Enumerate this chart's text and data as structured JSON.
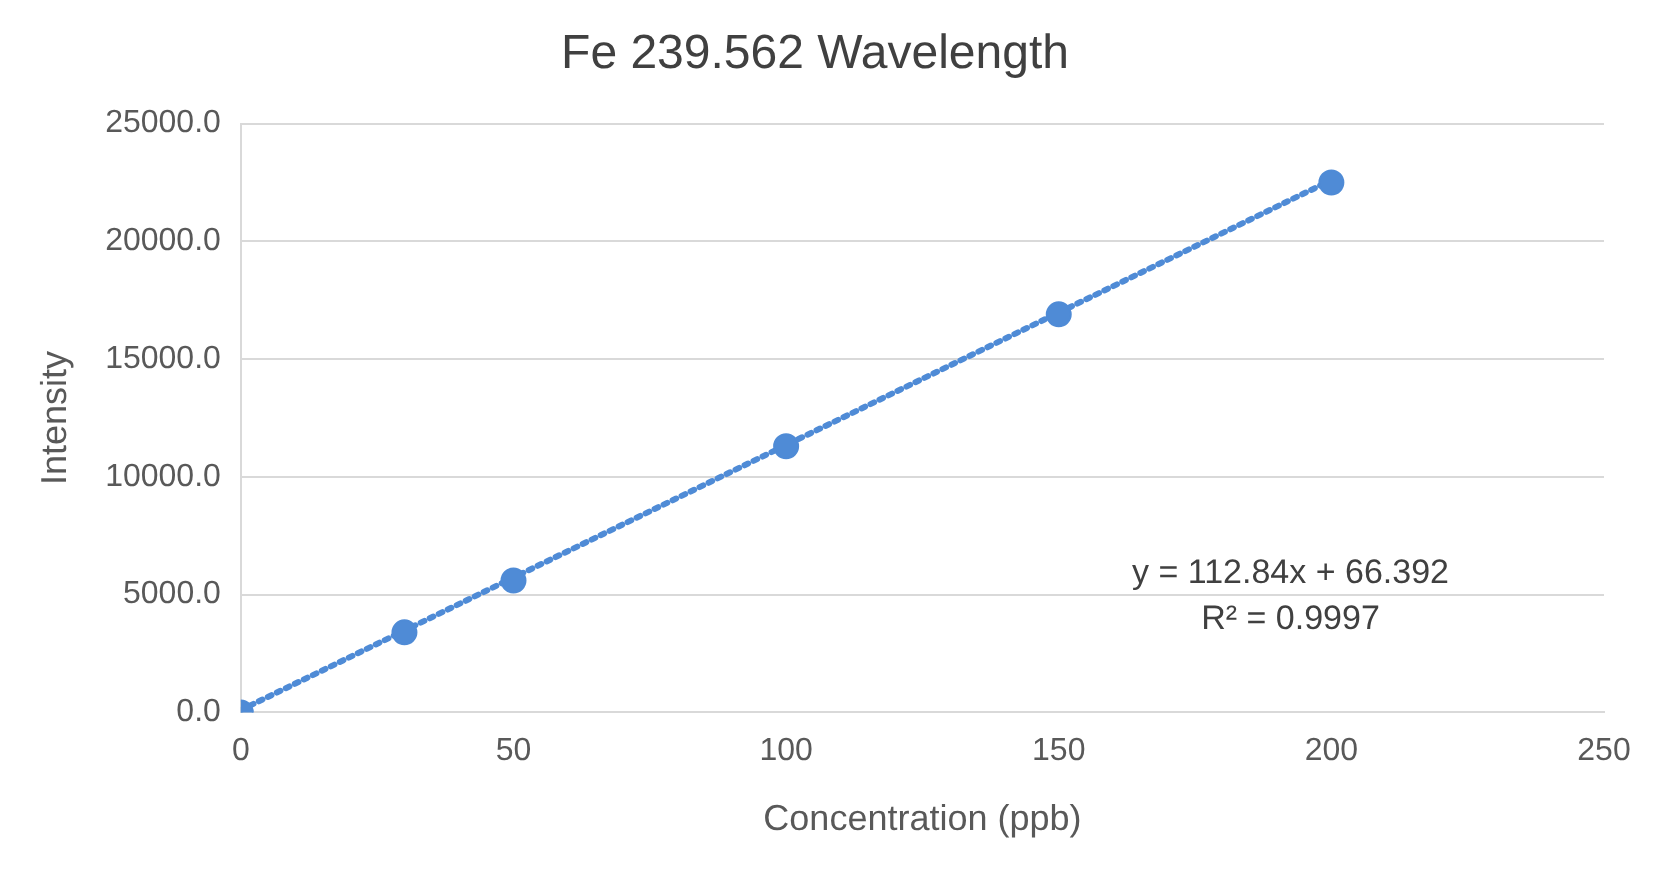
{
  "chart_data": {
    "type": "scatter",
    "title": "Fe 239.562 Wavelength",
    "xlabel": "Concentration (ppb)",
    "ylabel": "Intensity",
    "series": [
      {
        "type": "scatter",
        "color": "#4f8bd6",
        "x": [
          0,
          30,
          50,
          100,
          150,
          200
        ],
        "values": [
          0,
          3400,
          5600,
          11300,
          16900,
          22500
        ]
      },
      {
        "type": "line",
        "color": "#4f8bd6",
        "x": [
          0,
          200
        ],
        "values": [
          100,
          22600
        ],
        "line_style": "dotted",
        "marker": "none"
      }
    ],
    "xlim": [
      0,
      250
    ],
    "xticks": [
      0,
      50,
      100,
      150,
      200,
      250
    ],
    "ylim": [
      0,
      25000
    ],
    "yticks": [
      {
        "value": 0,
        "label": "0.0"
      },
      {
        "value": 5000,
        "label": "5000.0"
      },
      {
        "value": 10000,
        "label": "10000.0"
      },
      {
        "value": 15000,
        "label": "15000.0"
      },
      {
        "value": 20000,
        "label": "20000.0"
      },
      {
        "value": 25000,
        "label": "25000.0"
      }
    ],
    "grid": "y",
    "legend": false,
    "marker": "circle",
    "annotations": [
      "y = 112.84x + 66.392",
      "R² = 0.9997"
    ]
  }
}
